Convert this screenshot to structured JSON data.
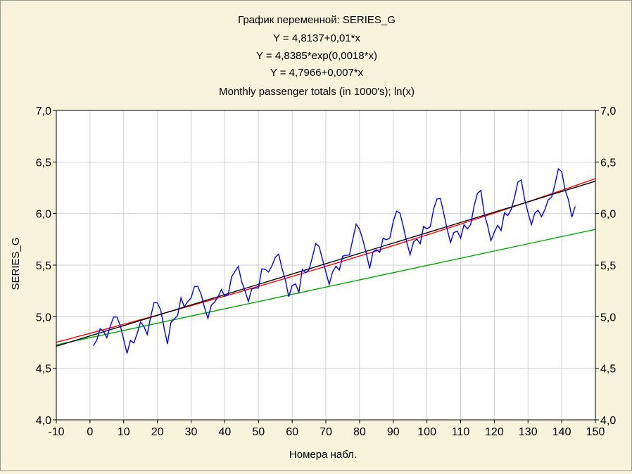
{
  "chart_data": {
    "type": "line",
    "title_lines": [
      "График переменной: SERIES_G",
      "Y = 4,8137+0,01*x",
      "Y = 4,8385*exp(0,0018*x)",
      "Y = 4,7966+0,007*x",
      "Monthly passenger totals (in 1000's); ln(x)"
    ],
    "xlabel": "Номера набл.",
    "ylabel": "SERIES_G",
    "xlim": [
      -10,
      150
    ],
    "ylim": [
      4.0,
      7.0
    ],
    "x_ticks": [
      -10,
      0,
      10,
      20,
      30,
      40,
      50,
      60,
      70,
      80,
      90,
      100,
      110,
      120,
      130,
      140,
      150
    ],
    "x_tick_labels": [
      "-10",
      "0",
      "10",
      "20",
      "30",
      "40",
      "50",
      "60",
      "70",
      "80",
      "90",
      "100",
      "110",
      "120",
      "130",
      "140",
      "150"
    ],
    "y_ticks": [
      4.0,
      4.5,
      5.0,
      5.5,
      6.0,
      6.5,
      7.0
    ],
    "y_tick_labels": [
      "4,0",
      "4,5",
      "5,0",
      "5,5",
      "6,0",
      "6,5",
      "7,0"
    ],
    "grid": true,
    "series": [
      {
        "color": "#0000ff",
        "x_start": 1,
        "values": [
          4.718,
          4.771,
          4.883,
          4.86,
          4.796,
          4.905,
          4.997,
          4.997,
          4.913,
          4.779,
          4.644,
          4.771,
          4.745,
          4.836,
          4.949,
          4.905,
          4.828,
          4.997,
          5.136,
          5.136,
          5.063,
          4.89,
          4.736,
          4.942,
          4.977,
          5.011,
          5.182,
          5.094,
          5.147,
          5.182,
          5.293,
          5.293,
          5.215,
          5.088,
          4.984,
          5.112,
          5.142,
          5.193,
          5.263,
          5.199,
          5.209,
          5.384,
          5.438,
          5.489,
          5.342,
          5.252,
          5.147,
          5.268,
          5.278,
          5.278,
          5.464,
          5.46,
          5.434,
          5.493,
          5.576,
          5.606,
          5.468,
          5.352,
          5.193,
          5.303,
          5.318,
          5.236,
          5.46,
          5.425,
          5.455,
          5.576,
          5.71,
          5.68,
          5.557,
          5.434,
          5.313,
          5.434,
          5.489,
          5.451,
          5.587,
          5.595,
          5.598,
          5.753,
          5.897,
          5.849,
          5.743,
          5.613,
          5.468,
          5.628,
          5.649,
          5.624,
          5.759,
          5.746,
          5.762,
          5.924,
          6.023,
          6.004,
          5.872,
          5.724,
          5.602,
          5.724,
          5.753,
          5.707,
          5.875,
          5.852,
          5.872,
          6.045,
          6.142,
          6.146,
          6.001,
          5.849,
          5.72,
          5.817,
          5.829,
          5.762,
          5.892,
          5.852,
          5.894,
          6.075,
          6.196,
          6.225,
          6.001,
          5.883,
          5.737,
          5.82,
          5.886,
          5.835,
          6.006,
          5.981,
          6.04,
          6.157,
          6.306,
          6.326,
          6.138,
          6.009,
          5.892,
          6.004,
          6.033,
          5.969,
          6.038,
          6.133,
          6.157,
          6.282,
          6.433,
          6.407,
          6.23,
          6.133,
          5.966,
          6.068
        ]
      },
      {
        "color": "#000000",
        "intercept": 4.8137,
        "slope": 0.01,
        "form": "linear"
      },
      {
        "color": "#ff0000",
        "coef": 4.8385,
        "rate": 0.0018,
        "form": "exp"
      },
      {
        "color": "#00aa00",
        "intercept": 4.7966,
        "slope": 0.007,
        "form": "linear"
      }
    ]
  }
}
